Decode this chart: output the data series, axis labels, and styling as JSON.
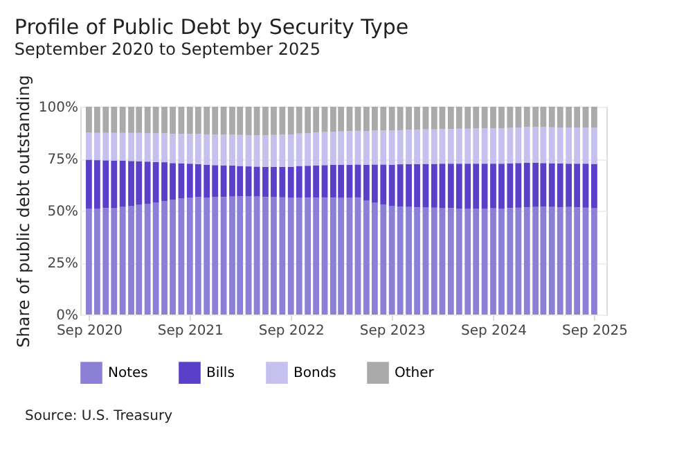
{
  "chart_data": {
    "type": "bar",
    "stacked": true,
    "title": "Profile of Public Debt by Security Type",
    "subtitle": "September 2020 to September 2025",
    "ylabel": "Share of public debt outstanding",
    "annotations": [
      "Source: U.S. Treasury"
    ],
    "x": [
      "2020-09",
      "2020-10",
      "2020-11",
      "2020-12",
      "2021-01",
      "2021-02",
      "2021-03",
      "2021-04",
      "2021-05",
      "2021-06",
      "2021-07",
      "2021-08",
      "2021-09",
      "2021-10",
      "2021-11",
      "2021-12",
      "2022-01",
      "2022-02",
      "2022-03",
      "2022-04",
      "2022-05",
      "2022-06",
      "2022-07",
      "2022-08",
      "2022-09",
      "2022-10",
      "2022-11",
      "2022-12",
      "2023-01",
      "2023-02",
      "2023-03",
      "2023-04",
      "2023-05",
      "2023-06",
      "2023-07",
      "2023-08",
      "2023-09",
      "2023-10",
      "2023-11",
      "2023-12",
      "2024-01",
      "2024-02",
      "2024-03",
      "2024-04",
      "2024-05",
      "2024-06",
      "2024-07",
      "2024-08",
      "2024-09",
      "2024-10",
      "2024-11",
      "2024-12",
      "2025-01",
      "2025-02",
      "2025-03",
      "2025-04",
      "2025-05",
      "2025-06",
      "2025-07",
      "2025-08",
      "2025-09"
    ],
    "series": [
      {
        "name": "Notes",
        "color": "#8c80d6",
        "values": [
          50.9,
          51.0,
          51.2,
          51.3,
          51.8,
          52.3,
          52.8,
          53.3,
          53.8,
          54.5,
          55.3,
          56.0,
          56.3,
          56.5,
          56.3,
          56.5,
          56.6,
          56.8,
          57.0,
          57.0,
          56.8,
          56.6,
          56.5,
          56.4,
          56.3,
          56.3,
          56.2,
          56.2,
          56.2,
          56.2,
          56.3,
          56.3,
          56.2,
          54.8,
          53.8,
          53.0,
          52.3,
          52.0,
          51.8,
          51.6,
          51.5,
          51.4,
          51.3,
          51.2,
          51.0,
          51.0,
          51.0,
          51.0,
          51.1,
          51.0,
          51.2,
          51.4,
          51.6,
          51.8,
          51.9,
          51.8,
          51.6,
          51.8,
          51.6,
          51.4,
          51.3
        ]
      },
      {
        "name": "Bills",
        "color": "#5a3fc9",
        "values": [
          23.6,
          23.3,
          23.0,
          22.8,
          22.2,
          21.6,
          21.0,
          20.3,
          19.6,
          18.8,
          17.6,
          16.8,
          16.3,
          15.9,
          15.8,
          15.4,
          15.2,
          14.9,
          14.5,
          14.3,
          14.4,
          14.5,
          14.6,
          14.7,
          14.8,
          15.2,
          15.4,
          15.6,
          15.7,
          15.8,
          15.8,
          15.8,
          16.0,
          17.3,
          18.4,
          19.2,
          19.8,
          20.3,
          20.6,
          20.8,
          21.0,
          21.1,
          21.3,
          21.4,
          21.6,
          21.6,
          21.6,
          21.6,
          21.5,
          21.6,
          21.5,
          21.5,
          21.4,
          21.2,
          21.0,
          21.0,
          21.1,
          20.8,
          21.0,
          21.2,
          21.2
        ]
      },
      {
        "name": "Bonds",
        "color": "#c6c0ee",
        "values": [
          13.0,
          13.1,
          13.2,
          13.3,
          13.4,
          13.5,
          13.6,
          13.7,
          13.8,
          13.9,
          14.0,
          14.1,
          14.3,
          14.4,
          14.5,
          14.6,
          14.7,
          14.8,
          14.9,
          15.0,
          15.1,
          15.2,
          15.3,
          15.4,
          15.5,
          15.6,
          15.7,
          15.8,
          15.9,
          16.0,
          16.0,
          16.1,
          16.2,
          16.2,
          16.3,
          16.3,
          16.4,
          16.4,
          16.5,
          16.5,
          16.6,
          16.6,
          16.7,
          16.7,
          16.8,
          16.8,
          16.9,
          16.9,
          17.0,
          17.0,
          17.1,
          17.1,
          17.2,
          17.2,
          17.3,
          17.3,
          17.3,
          17.4,
          17.4,
          17.4,
          17.4
        ]
      },
      {
        "name": "Other",
        "color": "#aaaaaa",
        "values": [
          12.5,
          12.6,
          12.6,
          12.6,
          12.6,
          12.6,
          12.6,
          12.7,
          12.8,
          12.8,
          13.1,
          13.1,
          13.1,
          13.2,
          13.4,
          13.5,
          13.5,
          13.5,
          13.6,
          13.7,
          13.7,
          13.7,
          13.6,
          13.5,
          13.4,
          12.9,
          12.7,
          12.4,
          12.2,
          12.0,
          11.9,
          11.8,
          11.6,
          11.7,
          11.5,
          11.5,
          11.5,
          11.3,
          11.1,
          11.1,
          10.9,
          10.9,
          10.7,
          10.7,
          10.6,
          10.6,
          10.5,
          10.5,
          10.4,
          10.4,
          10.2,
          10.0,
          9.8,
          9.8,
          9.8,
          9.9,
          10.0,
          10.0,
          10.0,
          10.0,
          10.1
        ]
      }
    ],
    "xlim": [
      "2020-08-01",
      "2025-10-15"
    ],
    "xticks": [
      {
        "value": "2020-09",
        "label": "Sep 2020"
      },
      {
        "value": "2021-09",
        "label": "Sep 2021"
      },
      {
        "value": "2022-09",
        "label": "Sep 2022"
      },
      {
        "value": "2023-09",
        "label": "Sep 2023"
      },
      {
        "value": "2024-09",
        "label": "Sep 2024"
      },
      {
        "value": "2025-09",
        "label": "Sep 2025"
      }
    ],
    "ylim": [
      0,
      100
    ],
    "yticks": [
      {
        "value": 0,
        "label": "0%"
      },
      {
        "value": 25,
        "label": "25%"
      },
      {
        "value": 50,
        "label": "50%"
      },
      {
        "value": 75,
        "label": "75%"
      },
      {
        "value": 100,
        "label": "100%"
      }
    ],
    "grid": true,
    "legend": "bottom"
  }
}
